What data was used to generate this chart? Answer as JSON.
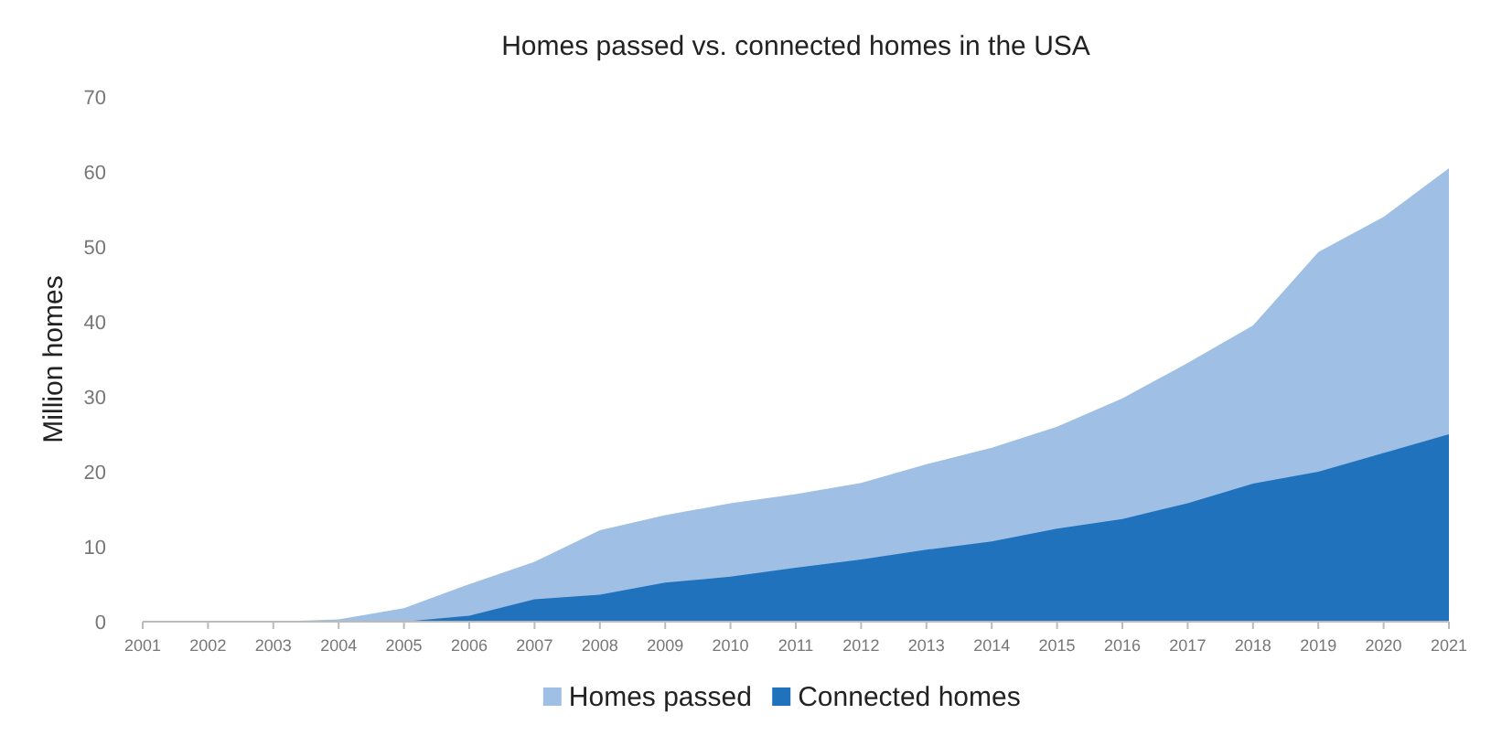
{
  "chart_data": {
    "type": "area",
    "title": "Homes passed vs. connected homes in the USA",
    "ylabel": "Million homes",
    "categories": [
      "2001",
      "2002",
      "2003",
      "2004",
      "2005",
      "2006",
      "2007",
      "2008",
      "2009",
      "2010",
      "2011",
      "2012",
      "2013",
      "2014",
      "2015",
      "2016",
      "2017",
      "2018",
      "2019",
      "2020",
      "2021"
    ],
    "series": [
      {
        "name": "Homes passed",
        "color": "#9fc0e4",
        "values": [
          0,
          0,
          0,
          0.3,
          1.8,
          5,
          8,
          12.2,
          14.2,
          15.8,
          17,
          18.5,
          21,
          23.2,
          26,
          29.8,
          34.5,
          39.5,
          49.3,
          54,
          60.5
        ]
      },
      {
        "name": "Connected homes",
        "color": "#1f72bb",
        "values": [
          0,
          0,
          0,
          0,
          0,
          0.8,
          3,
          3.6,
          5.2,
          6,
          7.2,
          8.3,
          9.6,
          10.7,
          12.4,
          13.7,
          15.8,
          18.4,
          20,
          22.5,
          25
        ]
      }
    ],
    "ylim": [
      0,
      70
    ],
    "yticks": [
      0,
      10,
      20,
      30,
      40,
      50,
      60,
      70
    ],
    "grid": false,
    "legend": "bottom"
  }
}
